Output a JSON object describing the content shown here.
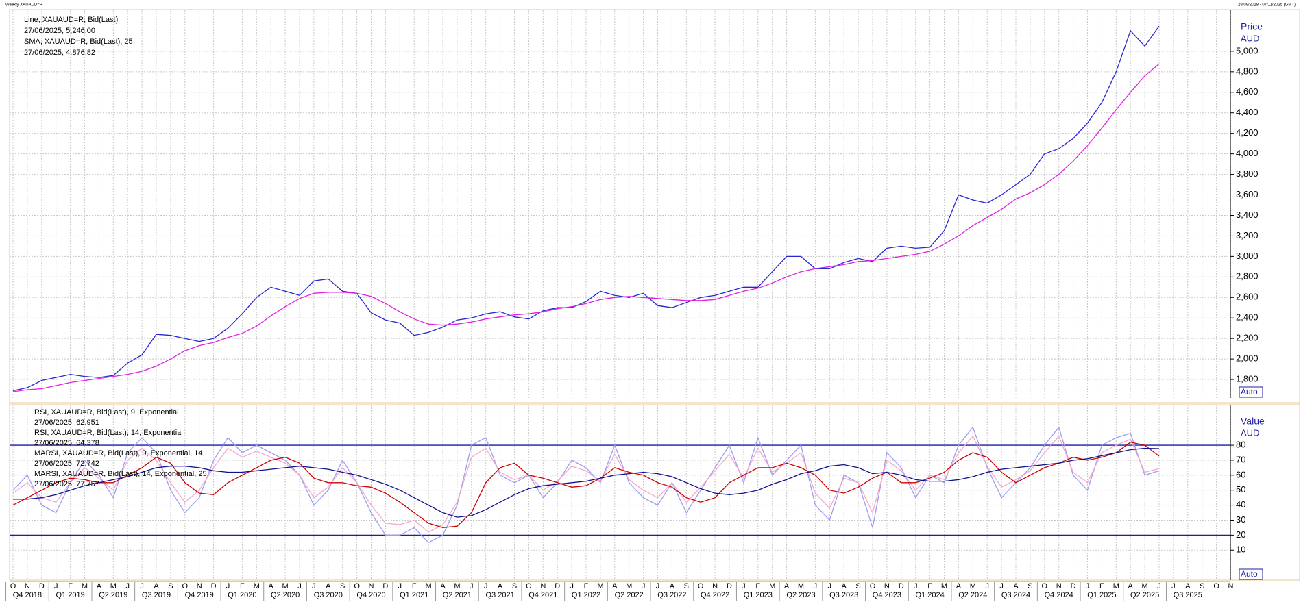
{
  "header": {
    "left": "Weekly XAUAUD=R",
    "right": "29/09/2018 - 07/11/2025 (GMT)"
  },
  "chart_data": [
    {
      "type": "line",
      "ylabel": "Price",
      "yunit": "AUD",
      "scale_mode": "Auto",
      "categories": [
        "O",
        "N",
        "D",
        "J",
        "F",
        "M",
        "A",
        "M",
        "J",
        "J",
        "A",
        "S",
        "O",
        "N",
        "D",
        "J",
        "F",
        "M",
        "A",
        "M",
        "J",
        "J",
        "A",
        "S",
        "O",
        "N",
        "D",
        "J",
        "F",
        "M",
        "A",
        "M",
        "J",
        "J",
        "A",
        "S",
        "O",
        "N",
        "D",
        "J",
        "F",
        "M",
        "A",
        "M",
        "J",
        "J",
        "A",
        "S",
        "O",
        "N",
        "D",
        "J",
        "F",
        "M",
        "A",
        "M",
        "J",
        "J",
        "A",
        "S",
        "O",
        "N",
        "D",
        "J",
        "F",
        "M",
        "A",
        "M",
        "J",
        "J",
        "A",
        "S",
        "O",
        "N",
        "D",
        "J",
        "F",
        "M",
        "A",
        "M",
        "J",
        "J",
        "A",
        "S",
        "O",
        "N"
      ],
      "quarters": [
        "Q4 2018",
        "Q1 2019",
        "Q2 2019",
        "Q3 2019",
        "Q4 2019",
        "Q1 2020",
        "Q2 2020",
        "Q3 2020",
        "Q4 2020",
        "Q1 2021",
        "Q2 2021",
        "Q3 2021",
        "Q4 2021",
        "Q1 2022",
        "Q2 2022",
        "Q3 2022",
        "Q4 2022",
        "Q1 2023",
        "Q2 2023",
        "Q3 2023",
        "Q4 2023",
        "Q1 2024",
        "Q2 2024",
        "Q3 2024",
        "Q4 2024",
        "Q1 2025",
        "Q2 2025",
        "Q3 2025"
      ],
      "ylim": [
        1620,
        5400
      ],
      "yticks": [
        {
          "value": 1800,
          "label": "1,800"
        },
        {
          "value": 2000,
          "label": "2,000"
        },
        {
          "value": 2200,
          "label": "2,200"
        },
        {
          "value": 2400,
          "label": "2,400"
        },
        {
          "value": 2600,
          "label": "2,600"
        },
        {
          "value": 2800,
          "label": "2,800"
        },
        {
          "value": 3000,
          "label": "3,000"
        },
        {
          "value": 3200,
          "label": "3,200"
        },
        {
          "value": 3400,
          "label": "3,400"
        },
        {
          "value": 3600,
          "label": "3,600"
        },
        {
          "value": 3800,
          "label": "3,800"
        },
        {
          "value": 4000,
          "label": "4,000"
        },
        {
          "value": 4200,
          "label": "4,200"
        },
        {
          "value": 4400,
          "label": "4,400"
        },
        {
          "value": 4600,
          "label": "4,600"
        },
        {
          "value": 4800,
          "label": "4,800"
        },
        {
          "value": 5000,
          "label": "5,000"
        }
      ],
      "grid": true,
      "series": [
        {
          "name": "Line, XAUAUD=R, Bid(Last)",
          "last_label": "27/06/2025, 5,246.00",
          "color": "#2626d4",
          "values": [
            1690,
            1720,
            1790,
            1820,
            1850,
            1830,
            1820,
            1840,
            1960,
            2040,
            2240,
            2230,
            2200,
            2170,
            2200,
            2300,
            2440,
            2600,
            2700,
            2660,
            2620,
            2760,
            2780,
            2660,
            2640,
            2450,
            2380,
            2350,
            2230,
            2260,
            2310,
            2380,
            2400,
            2440,
            2460,
            2410,
            2390,
            2470,
            2500,
            2500,
            2560,
            2660,
            2620,
            2600,
            2640,
            2520,
            2500,
            2550,
            2600,
            2620,
            2660,
            2700,
            2700,
            2850,
            3000,
            3000,
            2880,
            2880,
            2940,
            2980,
            2950,
            3080,
            3100,
            3080,
            3090,
            3250,
            3600,
            3550,
            3520,
            3600,
            3700,
            3800,
            4000,
            4050,
            4150,
            4300,
            4500,
            4800,
            5200,
            5050,
            5246,
            null,
            null,
            null,
            null,
            null
          ]
        },
        {
          "name": "SMA, XAUAUD=R, Bid(Last),  25",
          "last_label": "27/06/2025, 4,876.82",
          "color": "#e020e0",
          "values": [
            1680,
            1700,
            1710,
            1740,
            1770,
            1790,
            1810,
            1830,
            1850,
            1880,
            1930,
            2000,
            2080,
            2130,
            2160,
            2210,
            2250,
            2320,
            2420,
            2510,
            2590,
            2640,
            2650,
            2650,
            2640,
            2610,
            2540,
            2460,
            2390,
            2340,
            2330,
            2340,
            2360,
            2390,
            2410,
            2430,
            2440,
            2460,
            2490,
            2510,
            2540,
            2580,
            2600,
            2610,
            2600,
            2590,
            2580,
            2570,
            2570,
            2580,
            2620,
            2660,
            2690,
            2740,
            2800,
            2850,
            2880,
            2900,
            2920,
            2950,
            2960,
            2980,
            3000,
            3020,
            3050,
            3120,
            3200,
            3300,
            3380,
            3460,
            3560,
            3620,
            3700,
            3800,
            3930,
            4080,
            4250,
            4430,
            4600,
            4760,
            4876.82,
            null,
            null,
            null,
            null,
            null
          ]
        }
      ]
    },
    {
      "type": "line",
      "ylabel": "Value",
      "yunit": "AUD",
      "scale_mode": "Auto",
      "ylim": [
        -10,
        107
      ],
      "yticks": [
        10,
        20,
        30,
        40,
        50,
        60,
        70,
        80
      ],
      "grid": true,
      "hlines": [
        20,
        80
      ],
      "hline_color": "#1c1ca8",
      "series": [
        {
          "name": "RSI, XAUAUD=R, Bid(Last),  9, Exponential",
          "last_label": "27/06/2025, 62.951",
          "color": "#9c9cf0",
          "values": [
            50,
            60,
            40,
            35,
            55,
            70,
            60,
            45,
            75,
            85,
            75,
            50,
            35,
            45,
            70,
            85,
            75,
            80,
            75,
            70,
            60,
            40,
            50,
            70,
            55,
            35,
            20,
            20,
            25,
            15,
            20,
            40,
            80,
            85,
            60,
            55,
            60,
            45,
            55,
            70,
            65,
            55,
            80,
            55,
            45,
            40,
            55,
            35,
            50,
            65,
            80,
            55,
            85,
            60,
            70,
            80,
            40,
            30,
            60,
            55,
            25,
            75,
            65,
            45,
            60,
            55,
            80,
            92,
            65,
            45,
            55,
            65,
            80,
            92,
            60,
            50,
            80,
            85,
            88,
            60,
            62.951,
            null,
            null,
            null,
            null,
            null
          ]
        },
        {
          "name": "RSI, XAUAUD=R, Bid(Last),  14, Exponential",
          "last_label": "27/06/2025, 64.378",
          "color": "#f4a6cc",
          "values": [
            48,
            55,
            45,
            42,
            55,
            65,
            58,
            50,
            70,
            78,
            70,
            55,
            42,
            50,
            65,
            78,
            72,
            76,
            72,
            68,
            60,
            45,
            52,
            65,
            55,
            40,
            28,
            27,
            30,
            22,
            27,
            42,
            72,
            78,
            62,
            57,
            60,
            50,
            56,
            66,
            63,
            56,
            74,
            57,
            50,
            45,
            55,
            42,
            52,
            63,
            74,
            58,
            78,
            62,
            68,
            75,
            48,
            38,
            58,
            55,
            35,
            70,
            63,
            50,
            60,
            57,
            75,
            86,
            66,
            52,
            57,
            63,
            75,
            86,
            62,
            55,
            75,
            80,
            84,
            62,
            64.378,
            null,
            null,
            null,
            null,
            null
          ]
        },
        {
          "name": "MARSI, XAUAUD=R, Bid(Last),  9, Exponential, 14",
          "last_label": "27/06/2025, 72.742",
          "color": "#cc0000",
          "values": [
            40,
            45,
            50,
            55,
            58,
            57,
            55,
            55,
            60,
            65,
            72,
            68,
            55,
            48,
            47,
            55,
            60,
            65,
            70,
            72,
            68,
            58,
            55,
            55,
            53,
            52,
            48,
            42,
            35,
            28,
            25,
            26,
            35,
            55,
            65,
            68,
            60,
            58,
            55,
            52,
            53,
            58,
            65,
            62,
            60,
            55,
            52,
            45,
            42,
            45,
            55,
            60,
            65,
            65,
            68,
            65,
            60,
            50,
            48,
            52,
            58,
            62,
            55,
            55,
            58,
            62,
            70,
            75,
            72,
            62,
            55,
            60,
            65,
            68,
            72,
            70,
            72,
            75,
            82,
            80,
            72.742,
            null,
            null,
            null,
            null,
            null
          ]
        },
        {
          "name": "MARSI, XAUAUD=R, Bid(Last),  14, Exponential, 25",
          "last_label": "27/06/2025, 77.757",
          "color": "#101090",
          "values": [
            44,
            44,
            45,
            47,
            50,
            53,
            55,
            57,
            59,
            62,
            65,
            66,
            66,
            65,
            63,
            62,
            62,
            63,
            64,
            65,
            66,
            65,
            64,
            62,
            60,
            57,
            54,
            50,
            45,
            40,
            35,
            32,
            33,
            37,
            42,
            47,
            51,
            53,
            54,
            55,
            56,
            58,
            60,
            61,
            62,
            61,
            59,
            55,
            51,
            48,
            47,
            48,
            50,
            54,
            57,
            61,
            63,
            66,
            67,
            65,
            61,
            62,
            60,
            57,
            56,
            56,
            57,
            59,
            62,
            64,
            65,
            66,
            67,
            68,
            70,
            71,
            73,
            75,
            77,
            78,
            77.757,
            null,
            null,
            null,
            null,
            null
          ]
        }
      ]
    }
  ]
}
